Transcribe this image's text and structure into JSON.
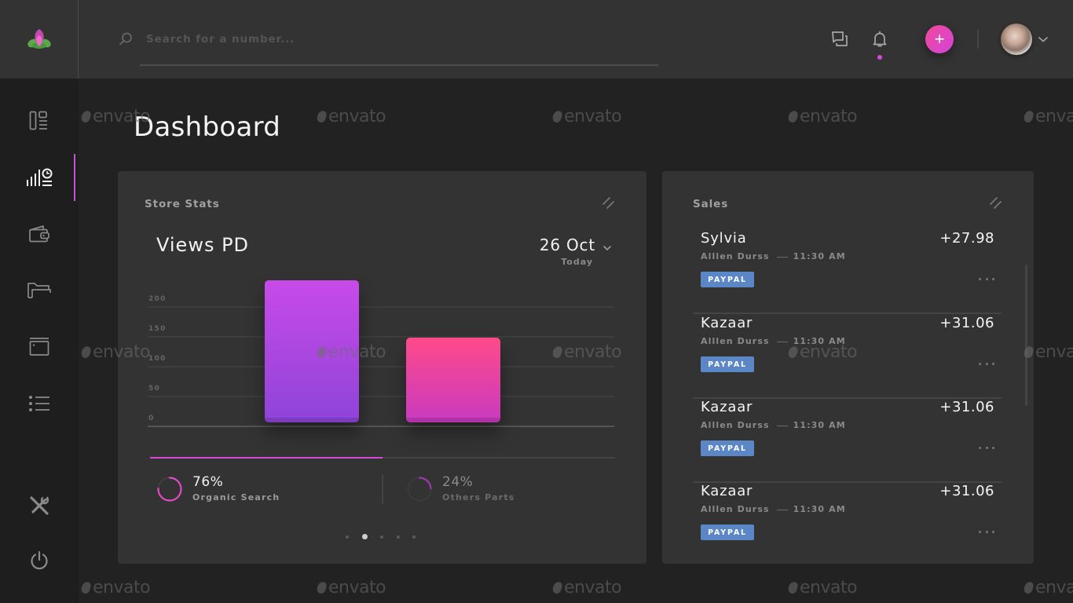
{
  "header": {
    "logo": "lotus-flower-logo",
    "search": {
      "placeholder": "Search for a number...",
      "value": ""
    },
    "icons": {
      "messages": "chat-bubbles-icon",
      "notifications": "bell-icon",
      "add": "plus-icon"
    },
    "add_label": "+",
    "notification_dot_color": "#d44ad8",
    "user_menu": "avatar-with-chevron"
  },
  "sidebar": {
    "items": [
      {
        "id": "layout",
        "icon": "layout-icon",
        "active": false
      },
      {
        "id": "stats",
        "icon": "stats-chart-icon",
        "active": true
      },
      {
        "id": "wallet",
        "icon": "wallet-icon",
        "active": false
      },
      {
        "id": "folder",
        "icon": "folder-icon",
        "active": false
      },
      {
        "id": "window",
        "icon": "window-icon",
        "active": false
      },
      {
        "id": "list",
        "icon": "list-icon",
        "active": false
      }
    ],
    "bottom_items": [
      {
        "id": "tools",
        "icon": "tools-icon"
      },
      {
        "id": "power",
        "icon": "power-icon"
      }
    ],
    "active_color": "#c84fd8"
  },
  "page": {
    "title": "Dashboard"
  },
  "store_stats": {
    "title": "Store Stats",
    "chart_title": "Views PD",
    "date": {
      "value": "26 Oct",
      "sub": "Today"
    },
    "y_ticks": [
      "200",
      "150",
      "100",
      "50",
      "0"
    ],
    "bars": [
      {
        "value": 243,
        "gradient": [
          "#c84ae8",
          "#8e44d8"
        ]
      },
      {
        "value": 147,
        "gradient": [
          "#ff4a8a",
          "#c83ac0"
        ]
      }
    ],
    "progress_pct": 50,
    "stats": [
      {
        "pct": "76%",
        "label": "Organic Search",
        "color": "#e04ac8"
      },
      {
        "pct": "24%",
        "label": "Others Parts",
        "color": "#9a3ab0"
      }
    ],
    "pager": {
      "count": 5,
      "active": 1
    }
  },
  "sales": {
    "title": "Sales",
    "items": [
      {
        "name": "Sylvia",
        "amount": "+27.98",
        "person": "Alllen Durss",
        "time": "11:30 AM",
        "method": "PAYPAL"
      },
      {
        "name": "Kazaar",
        "amount": "+31.06",
        "person": "Alllen Durss",
        "time": "11:30 AM",
        "method": "PAYPAL"
      },
      {
        "name": "Kazaar",
        "amount": "+31.06",
        "person": "Alllen Durss",
        "time": "11:30 AM",
        "method": "PAYPAL"
      },
      {
        "name": "Kazaar",
        "amount": "+31.06",
        "person": "Alllen Durss",
        "time": "11:30 AM",
        "method": "PAYPAL"
      }
    ]
  },
  "watermark": "envato",
  "colors": {
    "background": "#222222",
    "topbar": "#333333",
    "sidebar": "#1e1e1e",
    "card": "#333333",
    "accent": "#d54ad4",
    "badge": "#5b87c6"
  }
}
